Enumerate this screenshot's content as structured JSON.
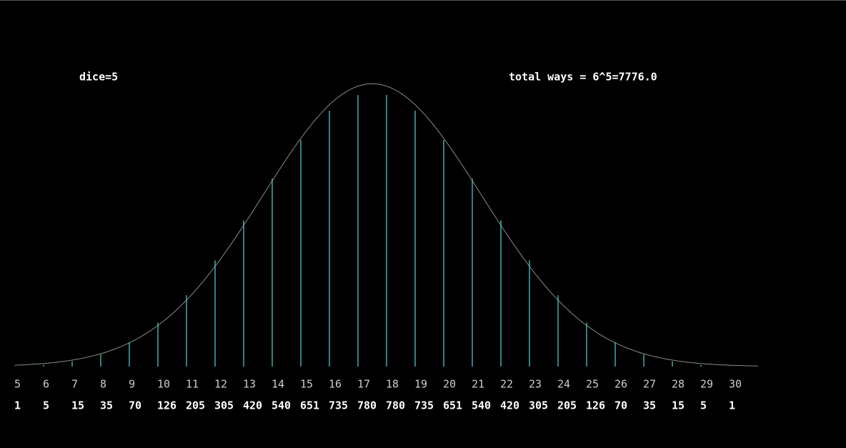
{
  "chart_data": {
    "type": "bar",
    "title": "dice=5",
    "subtitle": "total ways = 6^5=7776.0",
    "categories": [
      5,
      6,
      7,
      8,
      9,
      10,
      11,
      12,
      13,
      14,
      15,
      16,
      17,
      18,
      19,
      20,
      21,
      22,
      23,
      24,
      25,
      26,
      27,
      28,
      29,
      30
    ],
    "values": [
      1,
      5,
      15,
      35,
      70,
      126,
      205,
      305,
      420,
      540,
      651,
      735,
      780,
      780,
      735,
      651,
      540,
      420,
      305,
      205,
      126,
      70,
      35,
      15,
      5,
      1
    ],
    "color": "#4fd8d0"
  }
}
